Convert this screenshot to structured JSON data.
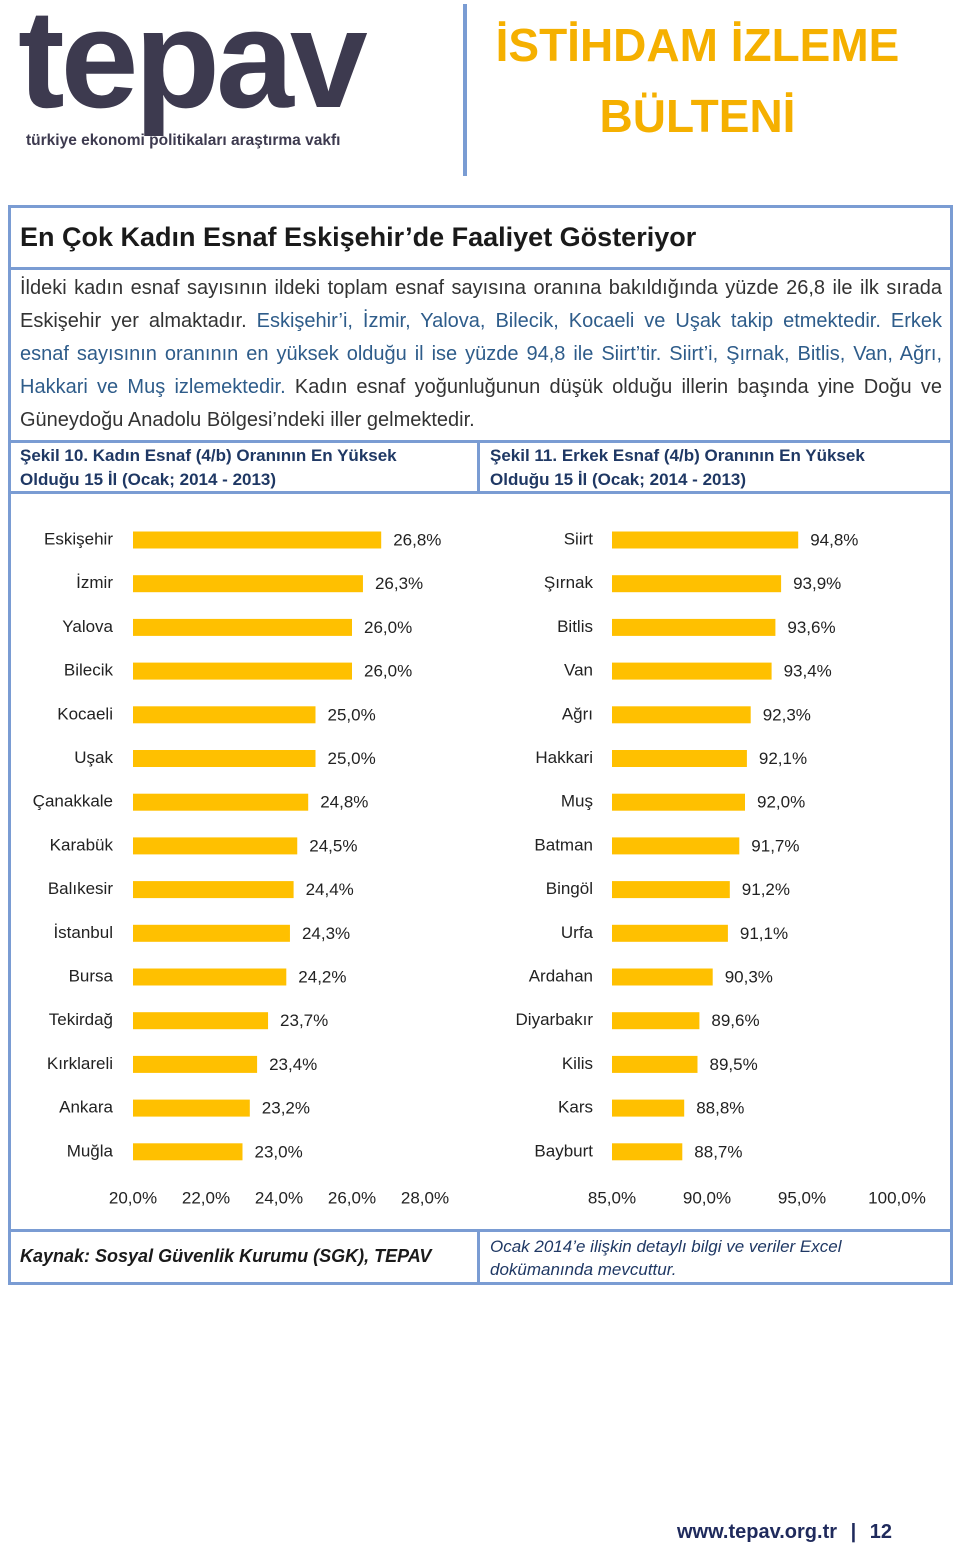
{
  "header": {
    "logo": "tepav",
    "logo_subtitle": "türkiye ekonomi politikaları araştırma vakfı",
    "bulletin_title": "İSTİHDAM İZLEME BÜLTENİ"
  },
  "section": {
    "heading": "En Çok Kadın Esnaf Eskişehir’de Faaliyet Gösteriyor",
    "paragraph": [
      "İldeki kadın esnaf sayısının ildeki toplam esnaf sayısına oranına bakıldığında yüzde 26,8 ile ilk sırada Eskişehir yer almaktadır.",
      "Eskişehir’i, İzmir, Yalova, Bilecik, Kocaeli ve Uşak takip etmektedir.",
      "Erkek esnaf sayısının oranının en yüksek olduğu il ise yüzde 94,8 ile Siirt’tir. Siirt’i, Şırnak, Bitlis, Van, Ağrı, Hakkari ve Muş izlemektedir.",
      "Kadın esnaf yoğunluğunun düşük olduğu illerin başında yine Doğu ve Güneydoğu Anadolu Bölgesi’ndeki iller gelmektedir."
    ]
  },
  "chart_data": [
    {
      "type": "bar",
      "orientation": "horizontal",
      "title": "Şekil 10. Kadın Esnaf (4/b) Oranının En Yüksek Olduğu 15 İl (Ocak; 2014 - 2013)",
      "categories": [
        "Eskişehir",
        "İzmir",
        "Yalova",
        "Bilecik",
        "Kocaeli",
        "Uşak",
        "Çanakkale",
        "Karabük",
        "Balıkesir",
        "İstanbul",
        "Bursa",
        "Tekirdağ",
        "Kırklareli",
        "Ankara",
        "Muğla"
      ],
      "values": [
        26.8,
        26.3,
        26.0,
        26.0,
        25.0,
        25.0,
        24.8,
        24.5,
        24.4,
        24.3,
        24.2,
        23.7,
        23.4,
        23.2,
        23.0
      ],
      "value_labels": [
        "26,8%",
        "26,3%",
        "26,0%",
        "26,0%",
        "25,0%",
        "25,0%",
        "24,8%",
        "24,5%",
        "24,4%",
        "24,3%",
        "24,2%",
        "23,7%",
        "23,4%",
        "23,2%",
        "23,0%"
      ],
      "color": "#ffc000",
      "xlim": [
        20,
        28
      ],
      "xticks": [
        {
          "value": 20,
          "label": "20,0%"
        },
        {
          "value": 22,
          "label": "22,0%"
        },
        {
          "value": 24,
          "label": "24,0%"
        },
        {
          "value": 26,
          "label": "26,0%"
        },
        {
          "value": 28,
          "label": "28,0%"
        }
      ]
    },
    {
      "type": "bar",
      "orientation": "horizontal",
      "title": "Şekil 11. Erkek Esnaf (4/b) Oranının En Yüksek Olduğu 15 İl (Ocak; 2014 - 2013)",
      "categories": [
        "Siirt",
        "Şırnak",
        "Bitlis",
        "Van",
        "Ağrı",
        "Hakkari",
        "Muş",
        "Batman",
        "Bingöl",
        "Urfa",
        "Ardahan",
        "Diyarbakır",
        "Kilis",
        "Kars",
        "Bayburt"
      ],
      "values": [
        94.8,
        93.9,
        93.6,
        93.4,
        92.3,
        92.1,
        92.0,
        91.7,
        91.2,
        91.1,
        90.3,
        89.6,
        89.5,
        88.8,
        88.7
      ],
      "value_labels": [
        "94,8%",
        "93,9%",
        "93,6%",
        "93,4%",
        "92,3%",
        "92,1%",
        "92,0%",
        "91,7%",
        "91,2%",
        "91,1%",
        "90,3%",
        "89,6%",
        "89,5%",
        "88,8%",
        "88,7%"
      ],
      "color": "#ffc000",
      "xlim": [
        85,
        100
      ],
      "xticks": [
        {
          "value": 85,
          "label": "85,0%"
        },
        {
          "value": 90,
          "label": "90,0%"
        },
        {
          "value": 95,
          "label": "95,0%"
        },
        {
          "value": 100,
          "label": "100,0%"
        }
      ]
    }
  ],
  "footer": {
    "source": "Kaynak: Sosyal Güvenlik Kurumu (SGK), TEPAV",
    "note": "Ocak 2014’e ilişkin detaylı bilgi ve veriler Excel dokümanında mevcuttur.",
    "website": "www.tepav.org.tr",
    "page_number": "12"
  }
}
